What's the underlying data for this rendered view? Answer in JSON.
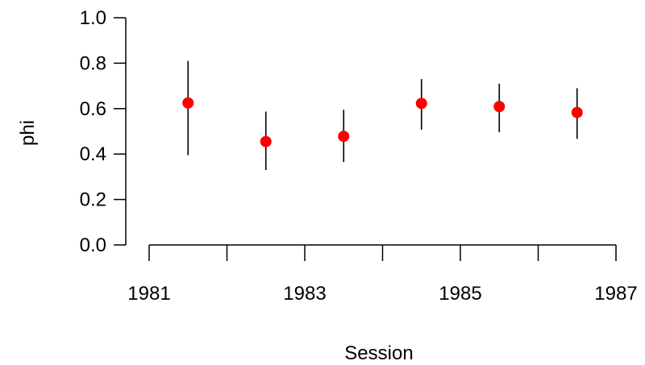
{
  "chart_data": {
    "type": "scatter",
    "title": "",
    "xlabel": "Session",
    "ylabel": "phi",
    "xlim": [
      1980.75,
      1987
    ],
    "ylim": [
      0.0,
      1.0
    ],
    "x_ticks": [
      1981,
      1982,
      1983,
      1984,
      1985,
      1986,
      1987
    ],
    "x_tick_labels": [
      "1981",
      "1983",
      "1985",
      "1987"
    ],
    "x_tick_label_positions": [
      1981,
      1983,
      1985,
      1987
    ],
    "y_ticks": [
      0.0,
      0.2,
      0.4,
      0.6,
      0.8,
      1.0
    ],
    "y_tick_labels": [
      "0.0",
      "0.2",
      "0.4",
      "0.6",
      "0.8",
      "1.0"
    ],
    "grid": false,
    "point_color": "#ff0000",
    "errorbar_color": "#000000",
    "series": [
      {
        "x": [
          1981.5,
          1982.5,
          1983.5,
          1984.5,
          1985.5,
          1986.5
        ],
        "y": [
          0.625,
          0.455,
          0.478,
          0.623,
          0.609,
          0.583
        ],
        "lower": [
          0.395,
          0.33,
          0.365,
          0.507,
          0.496,
          0.467
        ],
        "upper": [
          0.81,
          0.587,
          0.595,
          0.73,
          0.71,
          0.69
        ]
      }
    ]
  }
}
